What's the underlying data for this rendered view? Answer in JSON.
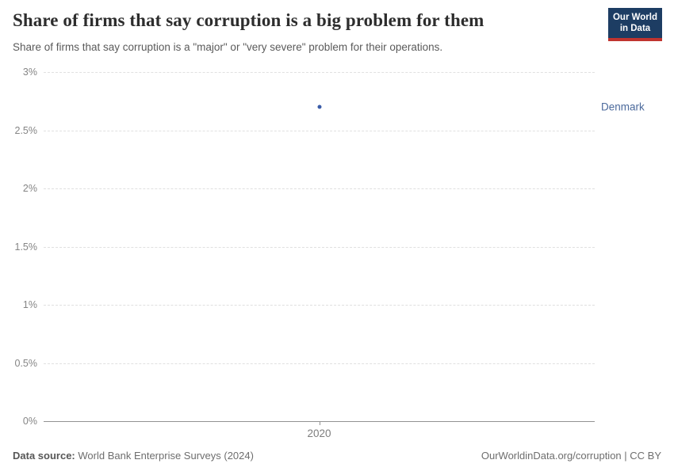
{
  "header": {
    "title": "Share of firms that say corruption is a big problem for them",
    "subtitle": "Share of firms that say corruption is a \"major\" or \"very severe\" problem for their operations.",
    "logo": {
      "line1": "Our World",
      "line2": "in Data"
    }
  },
  "chart_data": {
    "type": "scatter",
    "title": "Share of firms that say corruption is a big problem for them",
    "subtitle": "Share of firms that say corruption is a \"major\" or \"very severe\" problem for their operations.",
    "xlabel": "",
    "ylabel": "",
    "unit": "%",
    "ylim": [
      0,
      3
    ],
    "grid": "horizontal-dashed",
    "legend_position": "entity-label-right",
    "yticks": [
      {
        "value": 0,
        "label": "0%"
      },
      {
        "value": 0.5,
        "label": "0.5%"
      },
      {
        "value": 1,
        "label": "1%"
      },
      {
        "value": 1.5,
        "label": "1.5%"
      },
      {
        "value": 2,
        "label": "2%"
      },
      {
        "value": 2.5,
        "label": "2.5%"
      },
      {
        "value": 3,
        "label": "3%"
      }
    ],
    "xticks": [
      {
        "value": 2020,
        "label": "2020"
      }
    ],
    "series": [
      {
        "name": "Denmark",
        "color": "#3a5ca8",
        "label_color": "#4c6a9c",
        "points": [
          {
            "x": 2020,
            "y": 2.7
          }
        ]
      }
    ]
  },
  "footer": {
    "source_label": "Data source:",
    "source_value": "World Bank Enterprise Surveys (2024)",
    "right_text": "OurWorldinData.org/corruption | CC BY"
  },
  "colors": {
    "logo_bg": "#1d3d63",
    "logo_accent": "#c0342f",
    "gridline": "#e0e0e0",
    "axis": "#929292",
    "title": "#2d2d2d",
    "subtitle": "#5a5a5a"
  }
}
